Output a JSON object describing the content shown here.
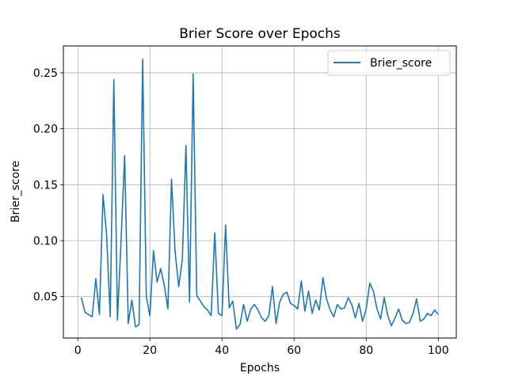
{
  "chart_data": {
    "type": "line",
    "title": "Brier Score over Epochs",
    "xlabel": "Epochs",
    "ylabel": "Brier_score",
    "xlim": [
      -4,
      105
    ],
    "ylim": [
      0.013,
      0.274
    ],
    "xticks": [
      0,
      20,
      40,
      60,
      80,
      100
    ],
    "yticks": [
      0.05,
      0.1,
      0.15,
      0.2,
      0.25
    ],
    "ytick_labels": [
      "0.05",
      "0.10",
      "0.15",
      "0.20",
      "0.25"
    ],
    "grid": true,
    "legend_position": "top-right",
    "series": [
      {
        "name": "Brier_score",
        "color": "#1f77b4",
        "x": [
          1,
          2,
          3,
          4,
          5,
          6,
          7,
          8,
          9,
          10,
          11,
          12,
          13,
          14,
          15,
          16,
          17,
          18,
          19,
          20,
          21,
          22,
          23,
          24,
          25,
          26,
          27,
          28,
          29,
          30,
          31,
          32,
          33,
          34,
          35,
          36,
          37,
          38,
          39,
          40,
          41,
          42,
          43,
          44,
          45,
          46,
          47,
          48,
          49,
          50,
          51,
          52,
          53,
          54,
          55,
          56,
          57,
          58,
          59,
          60,
          61,
          62,
          63,
          64,
          65,
          66,
          67,
          68,
          69,
          70,
          71,
          72,
          73,
          74,
          75,
          76,
          77,
          78,
          79,
          80,
          81,
          82,
          83,
          84,
          85,
          86,
          87,
          88,
          89,
          90,
          91,
          92,
          93,
          94,
          95,
          96,
          97,
          98,
          99,
          100
        ],
        "values": [
          0.049,
          0.036,
          0.034,
          0.032,
          0.066,
          0.034,
          0.141,
          0.105,
          0.032,
          0.244,
          0.029,
          0.1,
          0.176,
          0.026,
          0.047,
          0.023,
          0.025,
          0.262,
          0.05,
          0.033,
          0.091,
          0.063,
          0.075,
          0.06,
          0.039,
          0.155,
          0.09,
          0.059,
          0.083,
          0.185,
          0.045,
          0.249,
          0.051,
          0.046,
          0.041,
          0.038,
          0.033,
          0.107,
          0.035,
          0.033,
          0.114,
          0.04,
          0.046,
          0.021,
          0.025,
          0.043,
          0.028,
          0.039,
          0.043,
          0.038,
          0.031,
          0.028,
          0.033,
          0.059,
          0.026,
          0.045,
          0.052,
          0.054,
          0.044,
          0.042,
          0.039,
          0.064,
          0.037,
          0.055,
          0.035,
          0.047,
          0.038,
          0.067,
          0.048,
          0.038,
          0.032,
          0.043,
          0.039,
          0.04,
          0.049,
          0.043,
          0.031,
          0.044,
          0.028,
          0.039,
          0.062,
          0.055,
          0.039,
          0.03,
          0.049,
          0.033,
          0.024,
          0.031,
          0.039,
          0.029,
          0.026,
          0.027,
          0.035,
          0.048,
          0.028,
          0.03,
          0.035,
          0.033,
          0.038,
          0.034
        ]
      }
    ]
  }
}
